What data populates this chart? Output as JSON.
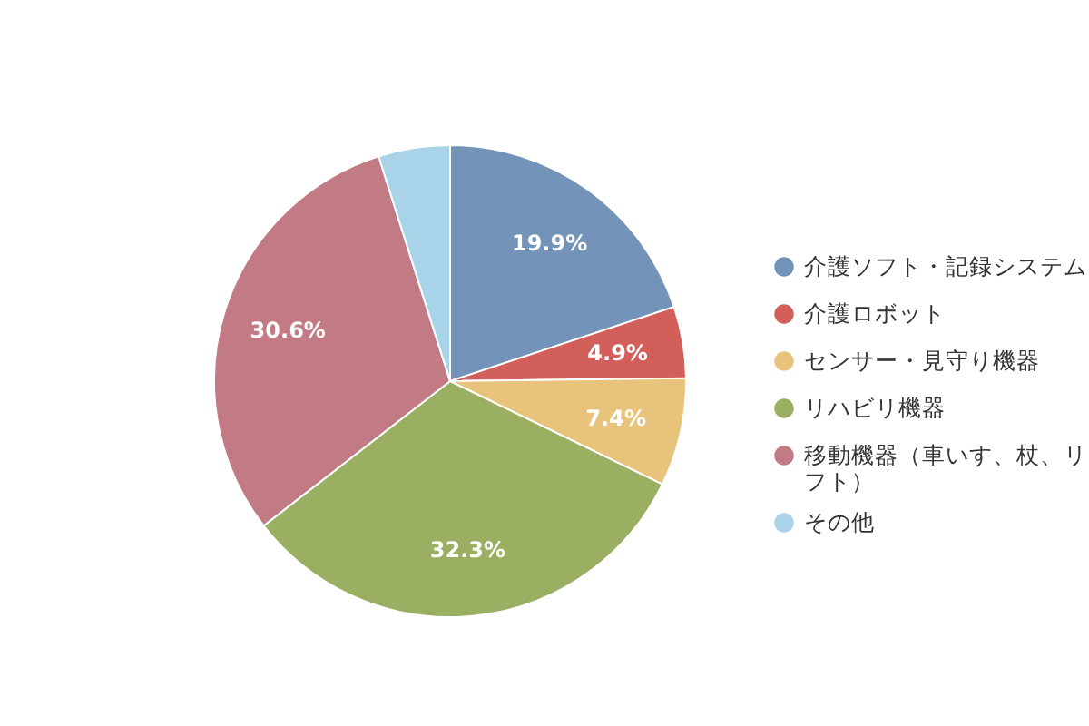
{
  "chart_data": {
    "type": "pie",
    "categories": [
      "介護ソフト・記録システム",
      "介護ロボット",
      "センサー・見守り機器",
      "リハビリ機器",
      "移動機器（車いす、杖、リフト）",
      "その他"
    ],
    "values": [
      19.9,
      4.9,
      7.4,
      32.3,
      30.6,
      4.9
    ],
    "colors": [
      "#7393b8",
      "#d35f5b",
      "#e8c37b",
      "#9aaf62",
      "#c27b85",
      "#a9d3e8"
    ],
    "value_labels": [
      "19.9%",
      "4.9%",
      "7.4%",
      "32.3%",
      "30.6%",
      null
    ],
    "legend": "right"
  }
}
